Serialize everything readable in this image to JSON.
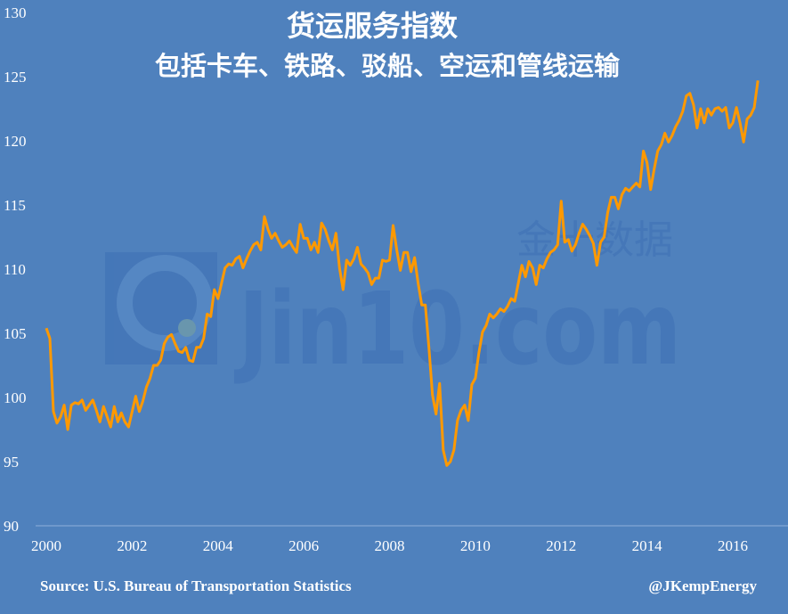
{
  "chart_data": {
    "type": "line",
    "title": "货运服务指数",
    "subtitle": "包括卡车、铁路、驳船、空运和管线运输",
    "xlabel": "",
    "ylabel": "",
    "x_start": "2000-01",
    "frequency": "monthly",
    "xlim": [
      2000,
      2017.3
    ],
    "ylim": [
      90,
      130
    ],
    "x_ticks": [
      "2000",
      "2002",
      "2004",
      "2006",
      "2008",
      "2010",
      "2012",
      "2014",
      "2016"
    ],
    "y_ticks": [
      "90",
      "95",
      "100",
      "105",
      "110",
      "115",
      "120",
      "125",
      "130"
    ],
    "grid": false,
    "legend": "none",
    "line_color": "#ff9900",
    "background_color": "#4f81bd",
    "values": [
      105.4,
      104.6,
      98.9,
      98.0,
      98.5,
      99.4,
      97.5,
      99.4,
      99.6,
      99.5,
      99.8,
      99.0,
      99.4,
      99.8,
      99.0,
      98.1,
      99.3,
      98.5,
      97.7,
      99.3,
      98.1,
      98.8,
      98.1,
      97.7,
      98.9,
      100.1,
      98.9,
      99.7,
      100.8,
      101.5,
      102.5,
      102.5,
      102.9,
      104.2,
      104.7,
      104.9,
      104.2,
      103.6,
      103.5,
      103.9,
      102.9,
      102.8,
      103.9,
      103.9,
      104.6,
      106.5,
      106.3,
      108.4,
      107.7,
      108.9,
      110.1,
      110.4,
      110.3,
      110.8,
      111.0,
      110.1,
      110.8,
      111.4,
      111.9,
      112.1,
      111.5,
      114.1,
      113.1,
      112.4,
      112.8,
      112.2,
      111.7,
      111.9,
      112.2,
      111.7,
      111.3,
      113.5,
      112.4,
      112.4,
      111.5,
      112.1,
      111.3,
      113.6,
      113.1,
      112.2,
      111.5,
      112.8,
      110.1,
      108.4,
      110.7,
      110.3,
      110.8,
      111.7,
      110.4,
      110.1,
      109.7,
      108.8,
      109.3,
      109.3,
      110.7,
      110.6,
      110.7,
      113.4,
      111.5,
      109.9,
      111.3,
      111.3,
      109.8,
      110.9,
      108.9,
      107.2,
      107.2,
      103.9,
      100.2,
      98.7,
      101.1,
      95.9,
      94.7,
      95.0,
      95.9,
      98.2,
      99.0,
      99.4,
      98.2,
      101.0,
      101.5,
      103.5,
      105.1,
      105.6,
      106.5,
      106.2,
      106.5,
      106.9,
      106.7,
      107.1,
      107.7,
      107.5,
      108.9,
      110.3,
      109.4,
      110.6,
      110.1,
      108.8,
      110.3,
      110.1,
      110.8,
      111.3,
      111.5,
      111.9,
      115.3,
      112.1,
      112.3,
      111.4,
      111.9,
      112.8,
      113.5,
      113.1,
      112.6,
      112.0,
      110.3,
      112.1,
      112.5,
      114.4,
      115.6,
      115.6,
      114.7,
      115.8,
      116.3,
      116.1,
      116.4,
      116.7,
      116.4,
      119.2,
      118.3,
      116.2,
      117.8,
      119.2,
      119.7,
      120.6,
      119.9,
      120.4,
      121.1,
      121.6,
      122.3,
      123.5,
      123.7,
      122.8,
      121.0,
      122.5,
      121.4,
      122.5,
      122.0,
      122.5,
      122.6,
      122.3,
      122.6,
      121.0,
      121.4,
      122.6,
      121.4,
      119.9,
      121.7,
      122.0,
      122.6,
      124.7
    ]
  },
  "footer": {
    "source": "Source: U.S. Bureau of Transportation Statistics",
    "credit": "@JKempEnergy"
  },
  "watermark": {
    "text": "Jin10.com",
    "text_cn": "金十数据"
  }
}
